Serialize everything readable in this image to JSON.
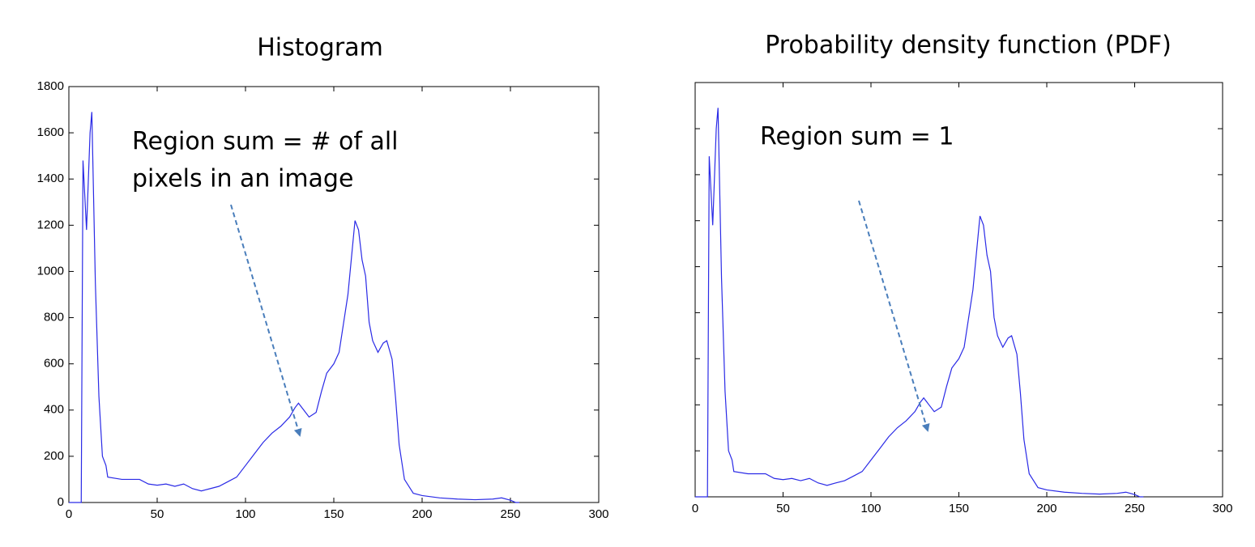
{
  "chart_data": [
    {
      "type": "line",
      "title": "Histogram",
      "annotation": [
        "Region sum = # of all",
        "pixels in an image"
      ],
      "x": [
        0,
        7,
        8,
        10,
        12,
        13,
        15,
        17,
        19,
        21,
        22,
        30,
        40,
        45,
        50,
        55,
        60,
        65,
        70,
        75,
        80,
        85,
        90,
        95,
        100,
        105,
        110,
        115,
        120,
        125,
        128,
        130,
        133,
        136,
        140,
        143,
        146,
        150,
        153,
        156,
        158,
        160,
        162,
        164,
        166,
        168,
        170,
        172,
        175,
        178,
        180,
        183,
        185,
        187,
        190,
        195,
        200,
        210,
        220,
        230,
        240,
        245,
        250,
        253,
        255
      ],
      "values": [
        0,
        0,
        1480,
        1180,
        1600,
        1690,
        950,
        460,
        200,
        160,
        110,
        100,
        100,
        80,
        75,
        80,
        70,
        80,
        60,
        50,
        60,
        70,
        90,
        110,
        160,
        210,
        260,
        300,
        330,
        370,
        410,
        430,
        400,
        370,
        390,
        480,
        560,
        600,
        650,
        800,
        900,
        1060,
        1220,
        1180,
        1050,
        980,
        780,
        700,
        650,
        690,
        700,
        620,
        450,
        250,
        100,
        40,
        30,
        20,
        15,
        12,
        15,
        20,
        10,
        0,
        0
      ],
      "color": "#2a2ae6",
      "xlim": [
        0,
        300
      ],
      "xticks": [
        0,
        50,
        100,
        150,
        200,
        250,
        300
      ],
      "ylim": [
        0,
        1800
      ],
      "yticks": [
        0,
        200,
        400,
        600,
        800,
        1000,
        1200,
        1400,
        1600,
        1800
      ],
      "ytick_labels": true
    },
    {
      "type": "line",
      "title": "Probability density function (PDF)",
      "annotation": [
        "Region sum = 1"
      ],
      "x": [
        0,
        7,
        8,
        10,
        12,
        13,
        15,
        17,
        19,
        21,
        22,
        30,
        40,
        45,
        50,
        55,
        60,
        65,
        70,
        75,
        80,
        85,
        90,
        95,
        100,
        105,
        110,
        115,
        120,
        125,
        128,
        130,
        133,
        136,
        140,
        143,
        146,
        150,
        153,
        156,
        158,
        160,
        162,
        164,
        166,
        168,
        170,
        172,
        175,
        178,
        180,
        183,
        185,
        187,
        190,
        195,
        200,
        210,
        220,
        230,
        240,
        245,
        250,
        253,
        255
      ],
      "values": [
        0,
        0,
        0.02258,
        0.01801,
        0.02441,
        0.02579,
        0.0145,
        0.00702,
        0.00305,
        0.00244,
        0.00168,
        0.00153,
        0.00153,
        0.00122,
        0.00114,
        0.00122,
        0.00107,
        0.00122,
        0.00092,
        0.00076,
        0.00092,
        0.00107,
        0.00137,
        0.00168,
        0.00244,
        0.0032,
        0.00397,
        0.00458,
        0.00504,
        0.00565,
        0.00626,
        0.00656,
        0.0061,
        0.00565,
        0.00595,
        0.00732,
        0.00854,
        0.00916,
        0.00992,
        0.01221,
        0.01373,
        0.01617,
        0.01862,
        0.01801,
        0.01602,
        0.01495,
        0.0119,
        0.01068,
        0.00992,
        0.01053,
        0.01068,
        0.00946,
        0.00687,
        0.00381,
        0.00153,
        0.00061,
        0.00046,
        0.00031,
        0.00023,
        0.00018,
        0.00023,
        0.00031,
        0.00015,
        0,
        0
      ],
      "color": "#2a2ae6",
      "xlim": [
        0,
        300
      ],
      "xticks": [
        0,
        50,
        100,
        150,
        200,
        250,
        300
      ],
      "ylim": [
        0,
        0.02747
      ],
      "yticks": [
        0,
        0.00305,
        0.0061,
        0.00916,
        0.01221,
        0.01526,
        0.01831,
        0.02136,
        0.02441,
        0.02747
      ],
      "ytick_labels": false
    }
  ]
}
